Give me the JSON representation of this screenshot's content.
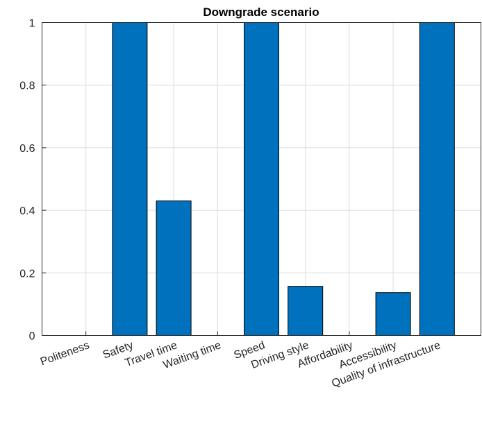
{
  "chart_data": {
    "type": "bar",
    "title": "Downgrade scenario",
    "xlabel": "",
    "ylabel": "",
    "categories": [
      "Politeness",
      "Safety",
      "Travel time",
      "Waiting time",
      "Speed",
      "Driving style",
      "Affordability",
      "Accessibility",
      "Quality of infrastructure"
    ],
    "values": [
      0,
      1,
      0.43,
      0,
      1,
      0.157,
      0,
      0.137,
      1
    ],
    "ylim": [
      0,
      1
    ],
    "yticks": [
      "0",
      "0.2",
      "0.4",
      "0.6",
      "0.8",
      "1"
    ],
    "grid": true,
    "bar_color": "#0072BD"
  }
}
